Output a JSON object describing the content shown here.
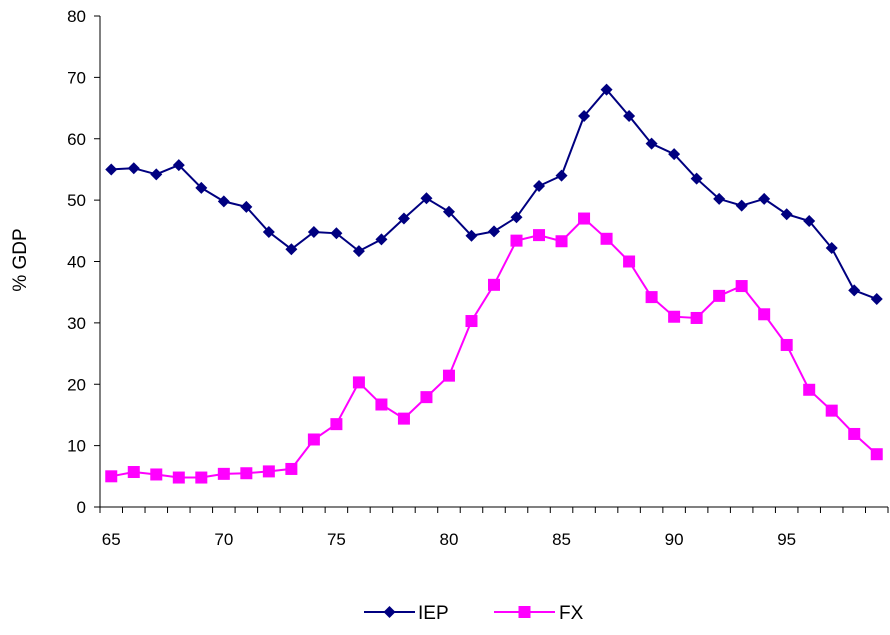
{
  "chart_data": {
    "type": "line",
    "title": "",
    "xlabel": "",
    "ylabel": "% GDP",
    "ylim": [
      0,
      80
    ],
    "yticks": [
      0,
      10,
      20,
      30,
      40,
      50,
      60,
      70,
      80
    ],
    "xlim": [
      64.5,
      99.5
    ],
    "xtick_labels": [
      "65",
      "70",
      "75",
      "80",
      "85",
      "90",
      "95"
    ],
    "xtick_values": [
      65,
      70,
      75,
      80,
      85,
      90,
      95
    ],
    "x": [
      65,
      66,
      67,
      68,
      69,
      70,
      71,
      72,
      73,
      74,
      75,
      76,
      77,
      78,
      79,
      80,
      81,
      82,
      83,
      84,
      85,
      86,
      87,
      88,
      89,
      90,
      91,
      92,
      93,
      94,
      95,
      96,
      97,
      98,
      99
    ],
    "grid": false,
    "legend_position": "bottom-center",
    "series": [
      {
        "name": "IEP",
        "color": "#000080",
        "marker": "diamond",
        "values": [
          55.0,
          55.2,
          54.2,
          55.7,
          52.0,
          49.8,
          48.9,
          44.8,
          42.0,
          44.8,
          44.6,
          41.7,
          43.6,
          47.0,
          50.3,
          48.1,
          44.2,
          44.9,
          47.2,
          52.3,
          54.0,
          63.7,
          68.0,
          63.7,
          59.2,
          57.5,
          53.5,
          50.2,
          49.1,
          50.2,
          47.7,
          46.6,
          42.2,
          35.3,
          33.9
        ]
      },
      {
        "name": "FX",
        "color": "#FF00FF",
        "marker": "square",
        "values": [
          5.0,
          5.7,
          5.3,
          4.8,
          4.8,
          5.4,
          5.5,
          5.8,
          6.2,
          11.0,
          13.5,
          20.3,
          16.7,
          14.4,
          17.9,
          21.4,
          30.3,
          36.2,
          43.4,
          44.3,
          43.3,
          47.0,
          43.7,
          40.0,
          34.2,
          31.0,
          30.8,
          34.4,
          36.0,
          31.4,
          26.4,
          19.1,
          15.7,
          11.9,
          8.6
        ]
      }
    ]
  }
}
